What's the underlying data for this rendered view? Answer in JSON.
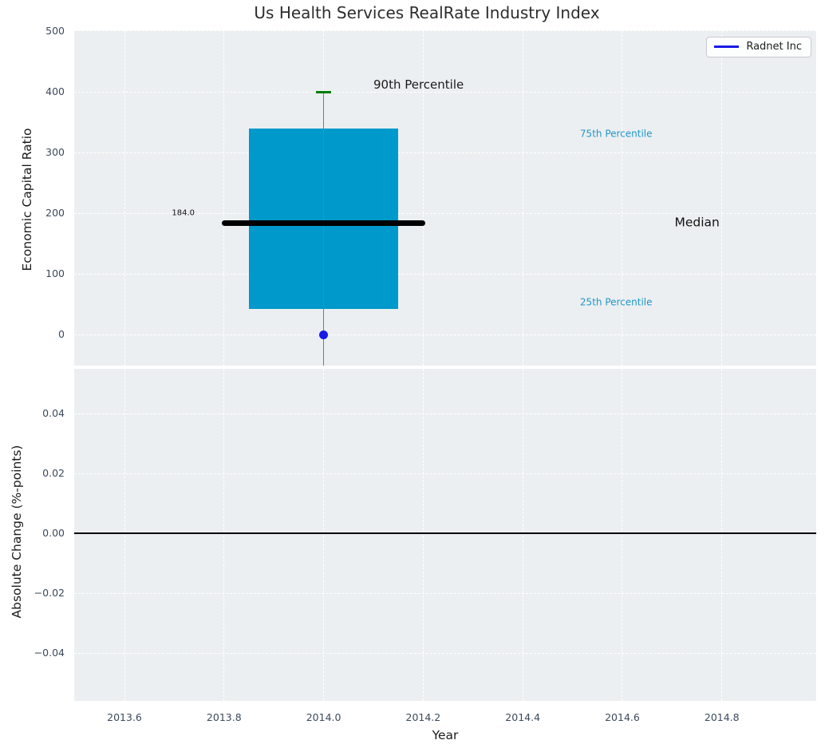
{
  "chart_data": {
    "type": "box",
    "title": "Us Health Services RealRate Industry Index",
    "xlabel": "Year",
    "xlim": [
      2013.499,
      2014.9895
    ],
    "xticks": [
      2013.6,
      2013.8,
      2014.0,
      2014.2,
      2014.4,
      2014.6,
      2014.8
    ],
    "xtick_labels": [
      "2013.6",
      "2013.8",
      "2014.0",
      "2014.2",
      "2014.4",
      "2014.6",
      "2014.8"
    ],
    "grid": "white dashed on light gray panels",
    "panels": [
      {
        "id": "top",
        "ylabel": "Economic Capital Ratio",
        "ylim": [
          -51.5,
          501.3
        ],
        "yticks": [
          0,
          100,
          200,
          300,
          400,
          500
        ],
        "ytick_labels": [
          "0",
          "100",
          "200",
          "300",
          "400",
          "500"
        ],
        "box": {
          "x": 2014.0,
          "q1": 43,
          "median": 184,
          "q3": 340,
          "p90": 400,
          "median_label": "184.0",
          "box_width": 0.3,
          "median_width": 0.408,
          "cap_width": 0.03,
          "lower_whisker": "extends below visible axis range"
        },
        "points": [
          {
            "name": "Radnet Inc",
            "x": 2014.0,
            "y": 0
          }
        ],
        "annotations": [
          {
            "text": "90th Percentile",
            "x": 2014.1,
            "y": 412,
            "color": "#1a1a1a",
            "size": 15,
            "ha": "left"
          },
          {
            "text": "75th Percentile",
            "x": 2014.515,
            "y": 331,
            "color": "#1f97c9",
            "size": 12,
            "ha": "left"
          },
          {
            "text": "Median",
            "x": 2014.705,
            "y": 184,
            "color": "#111111",
            "size": 15.5,
            "ha": "left"
          },
          {
            "text": "25th Percentile",
            "x": 2014.515,
            "y": 53,
            "color": "#1f97c9",
            "size": 12,
            "ha": "left"
          },
          {
            "text": "184.0",
            "x": 2013.741,
            "y": 200,
            "color": "#111111",
            "size": 10,
            "ha": "right"
          }
        ],
        "legend": {
          "label": "Radnet Inc",
          "position": "upper right"
        }
      },
      {
        "id": "bottom",
        "ylabel": "Absolute Change (%-points)",
        "ylim": [
          -0.0559,
          0.055
        ],
        "yticks": [
          0.04,
          0.02,
          0.0,
          -0.02,
          -0.04
        ],
        "ytick_labels": [
          "0.04",
          "0.02",
          "0.00",
          "−0.02",
          "−0.04"
        ],
        "zero_line": 0.0
      }
    ],
    "colors": {
      "box_fill": "#0099cb",
      "median_line": "#000000",
      "whisker": "#7a7a7a",
      "cap": "#007d00",
      "radnet": "#1a1ae6",
      "axes_bg": "#eceff1",
      "grid": "#ffffff",
      "tick_label": "#3b4a5c"
    }
  }
}
